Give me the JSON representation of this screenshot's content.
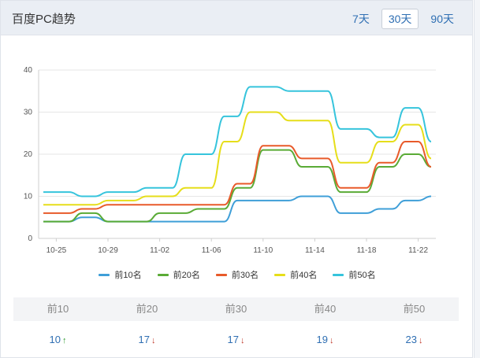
{
  "header": {
    "title": "百度PC趋势",
    "tabs": [
      {
        "label": "7天",
        "active": false
      },
      {
        "label": "30天",
        "active": true
      },
      {
        "label": "90天",
        "active": false
      }
    ]
  },
  "chart_data": {
    "type": "line",
    "x_tick_labels": [
      "10-25",
      "10-29",
      "11-02",
      "11-06",
      "11-10",
      "11-14",
      "11-18",
      "11-22"
    ],
    "x": [
      "10-24",
      "10-25",
      "10-26",
      "10-27",
      "10-28",
      "10-29",
      "10-30",
      "10-31",
      "11-01",
      "11-02",
      "11-03",
      "11-04",
      "11-05",
      "11-06",
      "11-07",
      "11-08",
      "11-09",
      "11-10",
      "11-11",
      "11-12",
      "11-13",
      "11-14",
      "11-15",
      "11-16",
      "11-17",
      "11-18",
      "11-19",
      "11-20",
      "11-21",
      "11-22",
      "11-23"
    ],
    "ylim": [
      0,
      40
    ],
    "yticks": [
      0,
      10,
      20,
      30,
      40
    ],
    "grid": true,
    "legend_position": "bottom",
    "series": [
      {
        "name": "前10名",
        "color": "#3f9fd8",
        "values": [
          4,
          4,
          4,
          5,
          5,
          4,
          4,
          4,
          4,
          4,
          4,
          4,
          4,
          4,
          4,
          9,
          9,
          9,
          9,
          9,
          10,
          10,
          10,
          6,
          6,
          6,
          7,
          7,
          9,
          9,
          10
        ]
      },
      {
        "name": "前20名",
        "color": "#5aab36",
        "values": [
          4,
          4,
          4,
          6,
          6,
          4,
          4,
          4,
          4,
          6,
          6,
          6,
          7,
          7,
          7,
          12,
          12,
          21,
          21,
          21,
          17,
          17,
          17,
          11,
          11,
          11,
          17,
          17,
          20,
          20,
          17
        ]
      },
      {
        "name": "前30名",
        "color": "#e85a2a",
        "values": [
          6,
          6,
          6,
          7,
          7,
          8,
          8,
          8,
          8,
          8,
          8,
          8,
          8,
          8,
          8,
          13,
          13,
          22,
          22,
          22,
          19,
          19,
          19,
          12,
          12,
          12,
          18,
          18,
          23,
          23,
          17
        ]
      },
      {
        "name": "前40名",
        "color": "#e6de1a",
        "values": [
          8,
          8,
          8,
          8,
          8,
          9,
          9,
          9,
          10,
          10,
          10,
          12,
          12,
          12,
          23,
          23,
          30,
          30,
          30,
          28,
          28,
          28,
          28,
          18,
          18,
          18,
          23,
          23,
          27,
          27,
          19
        ]
      },
      {
        "name": "前50名",
        "color": "#36c4dc",
        "values": [
          11,
          11,
          11,
          10,
          10,
          11,
          11,
          11,
          12,
          12,
          12,
          20,
          20,
          20,
          29,
          29,
          36,
          36,
          36,
          35,
          35,
          35,
          35,
          26,
          26,
          26,
          24,
          24,
          31,
          31,
          23
        ]
      }
    ]
  },
  "stats": {
    "headers": [
      "前10",
      "前20",
      "前30",
      "前40",
      "前50"
    ],
    "values": [
      {
        "value": "10",
        "trend": "up",
        "arrow": "↑",
        "arrow_color": "#2e9a2e"
      },
      {
        "value": "17",
        "trend": "down",
        "arrow": "↓",
        "arrow_color": "#c0392b"
      },
      {
        "value": "17",
        "trend": "down",
        "arrow": "↓",
        "arrow_color": "#c0392b"
      },
      {
        "value": "19",
        "trend": "down",
        "arrow": "↓",
        "arrow_color": "#c0392b"
      },
      {
        "value": "23",
        "trend": "down",
        "arrow": "↓",
        "arrow_color": "#c0392b"
      }
    ]
  }
}
